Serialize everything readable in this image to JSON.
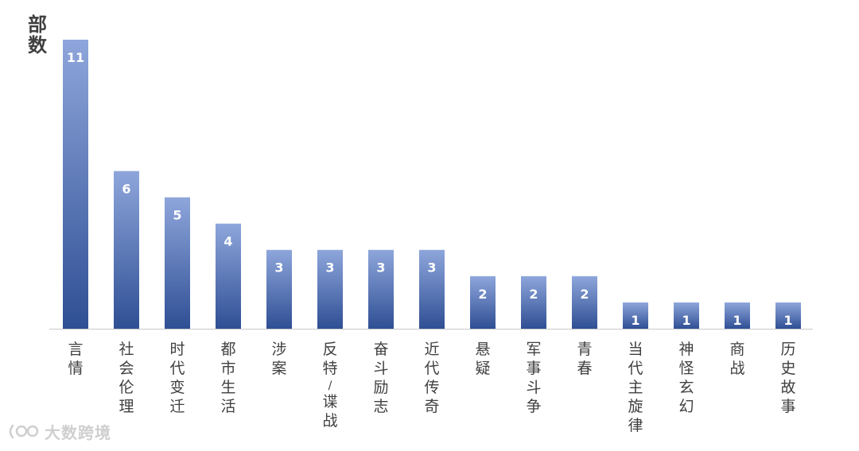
{
  "chart_data": {
    "type": "bar",
    "categories": [
      "言情",
      "社会伦理",
      "时代变迁",
      "都市生活",
      "涉案",
      "反特/谍战",
      "奋斗励志",
      "近代传奇",
      "悬疑",
      "军事斗争",
      "青春",
      "当代主旋律",
      "神怪玄幻",
      "商战",
      "历史故事"
    ],
    "values": [
      11,
      6,
      5,
      4,
      3,
      3,
      3,
      3,
      2,
      2,
      2,
      1,
      1,
      1,
      1
    ],
    "ylabel": "部数",
    "xlabel": "",
    "title": "",
    "ylim": [
      0,
      11
    ],
    "grid": false,
    "legend": "none",
    "data_labels": true,
    "colors": {
      "bar_top": "#8ea6db",
      "bar_bottom": "#2f4f94",
      "data_label": "#ffffff",
      "axis": "#c8c8c8",
      "text": "#404040"
    }
  },
  "watermark": {
    "text": "大数跨境"
  }
}
